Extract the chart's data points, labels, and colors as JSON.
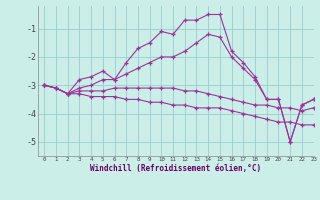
{
  "xlabel": "Windchill (Refroidissement éolien,°C)",
  "bg_color": "#cceee8",
  "line_color": "#993399",
  "grid_color": "#99cccc",
  "hours": [
    0,
    1,
    2,
    3,
    4,
    5,
    6,
    7,
    8,
    9,
    10,
    11,
    12,
    13,
    14,
    15,
    16,
    17,
    18,
    19,
    20,
    21,
    22,
    23
  ],
  "series": [
    [
      -3.0,
      -3.1,
      -3.3,
      -2.8,
      -2.7,
      -2.5,
      -2.8,
      -2.2,
      -1.7,
      -1.5,
      -1.1,
      -1.2,
      -0.7,
      -0.7,
      -0.5,
      -0.5,
      -1.8,
      -2.2,
      -2.7,
      -3.5,
      -3.5,
      -5.0,
      -3.7,
      -3.5
    ],
    [
      -3.0,
      -3.1,
      -3.3,
      -3.1,
      -3.0,
      -2.8,
      -2.8,
      -2.6,
      -2.4,
      -2.2,
      -2.0,
      -2.0,
      -1.8,
      -1.5,
      -1.2,
      -1.3,
      -2.0,
      -2.4,
      -2.8,
      -3.5,
      -3.5,
      -5.0,
      -3.7,
      -3.5
    ],
    [
      -3.0,
      -3.1,
      -3.3,
      -3.2,
      -3.2,
      -3.2,
      -3.1,
      -3.1,
      -3.1,
      -3.1,
      -3.1,
      -3.1,
      -3.2,
      -3.2,
      -3.3,
      -3.4,
      -3.5,
      -3.6,
      -3.7,
      -3.7,
      -3.8,
      -3.8,
      -3.9,
      -3.8
    ],
    [
      -3.0,
      -3.1,
      -3.3,
      -3.3,
      -3.4,
      -3.4,
      -3.4,
      -3.5,
      -3.5,
      -3.6,
      -3.6,
      -3.7,
      -3.7,
      -3.8,
      -3.8,
      -3.8,
      -3.9,
      -4.0,
      -4.1,
      -4.2,
      -4.3,
      -4.3,
      -4.4,
      -4.4
    ]
  ],
  "ylim": [
    -5.5,
    -0.2
  ],
  "xlim": [
    -0.5,
    23
  ],
  "yticks": [
    -5,
    -4,
    -3,
    -2,
    -1
  ],
  "xticks": [
    0,
    1,
    2,
    3,
    4,
    5,
    6,
    7,
    8,
    9,
    10,
    11,
    12,
    13,
    14,
    15,
    16,
    17,
    18,
    19,
    20,
    21,
    22,
    23
  ]
}
